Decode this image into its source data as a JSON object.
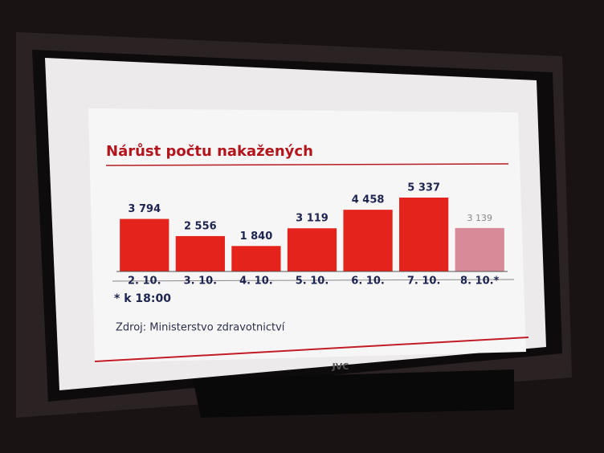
{
  "chart_data": {
    "type": "bar",
    "title": "Nárůst počtu nakažených",
    "categories": [
      "2. 10.",
      "3. 10.",
      "4. 10.",
      "5. 10.",
      "6. 10.",
      "7. 10.",
      "8. 10.*"
    ],
    "values": [
      3794,
      2556,
      1840,
      3119,
      4458,
      5337,
      3139
    ],
    "value_labels": [
      "3 794",
      "2 556",
      "1 840",
      "3 119",
      "4 458",
      "5 337",
      "3 139"
    ],
    "colors": [
      "#e3231c",
      "#e3231c",
      "#e3231c",
      "#e3231c",
      "#e3231c",
      "#e3231c",
      "#d98a98"
    ],
    "footnote": "* k 18:00",
    "source": "Zdroj: Ministerstvo zdravotnictví"
  },
  "tv_brand": "JVC"
}
